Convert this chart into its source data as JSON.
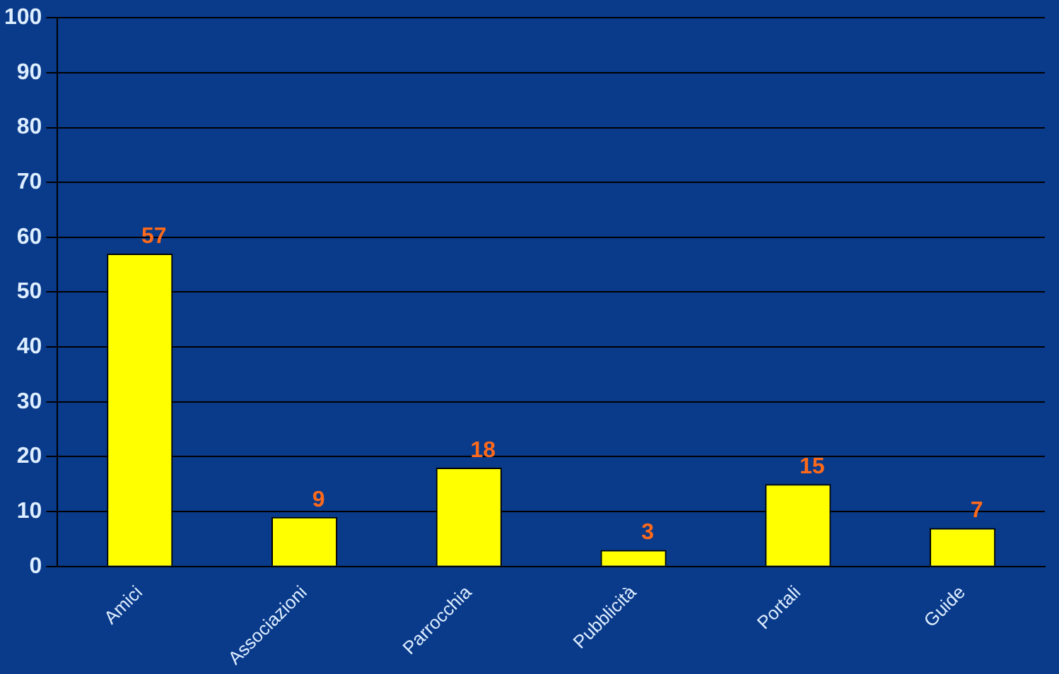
{
  "chart_data": {
    "type": "bar",
    "categories": [
      "Amici",
      "Associazioni",
      "Parrocchia",
      "Pubblicità",
      "Portali",
      "Guide"
    ],
    "values": [
      57,
      9,
      18,
      3,
      15,
      7
    ],
    "color": "#ffff00",
    "data_labels": true,
    "ylim": [
      0,
      100
    ],
    "yticks": [
      0,
      10,
      20,
      30,
      40,
      50,
      60,
      70,
      80,
      90,
      100
    ],
    "grid": "y"
  }
}
